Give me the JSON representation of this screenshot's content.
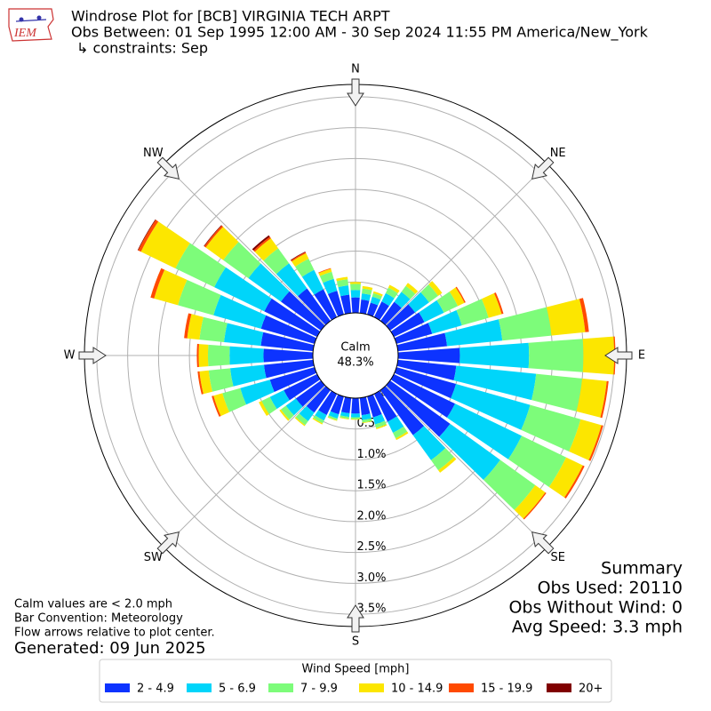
{
  "chart_data": {
    "type": "windrose",
    "title": "Windrose Plot for [BCB] VIRGINIA TECH ARPT",
    "subtitle": "Obs Between: 01 Sep 1995 12:00 AM - 30 Sep 2024 11:55 PM America/New_York",
    "constraints": "↳ constraints: Sep",
    "calm_label": "Calm",
    "calm_percent": "48.3%",
    "compass": [
      "N",
      "NE",
      "E",
      "SE",
      "S",
      "SW",
      "W",
      "NW"
    ],
    "x": [
      0,
      10,
      20,
      30,
      40,
      50,
      60,
      70,
      80,
      90,
      100,
      110,
      120,
      130,
      140,
      150,
      160,
      170,
      180,
      190,
      200,
      210,
      220,
      230,
      240,
      250,
      260,
      270,
      280,
      290,
      300,
      310,
      320,
      330,
      340,
      350
    ],
    "ylim": [
      0,
      3.7
    ],
    "yticks": [
      {
        "value": 0,
        "label": "0.0%"
      },
      {
        "value": 0.5,
        "label": "0.5%"
      },
      {
        "value": 1,
        "label": "1.0%"
      },
      {
        "value": 1.5,
        "label": "1.5%"
      },
      {
        "value": 2,
        "label": "2.0%"
      },
      {
        "value": 2.5,
        "label": "2.5%"
      },
      {
        "value": 3,
        "label": "3.0%"
      },
      {
        "value": 3.5,
        "label": "3.5%"
      }
    ],
    "grid": true,
    "legend_title": "Wind Speed [mph]",
    "series": [
      {
        "name": "2 - 4.9",
        "color": "#0d33ff",
        "values": [
          0.25,
          0.22,
          0.2,
          0.28,
          0.38,
          0.5,
          0.55,
          0.6,
          0.8,
          1.0,
          0.95,
          1.0,
          1.1,
          1.2,
          0.9,
          0.5,
          0.35,
          0.28,
          0.25,
          0.25,
          0.3,
          0.38,
          0.45,
          0.5,
          0.6,
          0.75,
          0.8,
          0.8,
          0.85,
          0.9,
          0.95,
          0.8,
          0.65,
          0.5,
          0.4,
          0.3
        ]
      },
      {
        "name": "5 - 6.9",
        "color": "#00d5fa",
        "values": [
          0.12,
          0.1,
          0.1,
          0.15,
          0.2,
          0.28,
          0.35,
          0.5,
          0.9,
          1.12,
          1.3,
          1.25,
          1.2,
          1.0,
          0.5,
          0.2,
          0.12,
          0.08,
          0.06,
          0.06,
          0.07,
          0.1,
          0.17,
          0.2,
          0.25,
          0.5,
          0.55,
          0.55,
          0.6,
          0.8,
          0.9,
          0.65,
          0.5,
          0.35,
          0.2,
          0.15
        ]
      },
      {
        "name": "7 - 9.9",
        "color": "#7dfc7a",
        "values": [
          0.1,
          0.08,
          0.06,
          0.1,
          0.12,
          0.18,
          0.25,
          0.45,
          0.8,
          0.88,
          0.75,
          0.85,
          0.8,
          0.7,
          0.2,
          0.1,
          0.06,
          0.04,
          0.03,
          0.03,
          0.03,
          0.05,
          0.08,
          0.1,
          0.15,
          0.3,
          0.35,
          0.35,
          0.4,
          0.6,
          0.7,
          0.5,
          0.3,
          0.2,
          0.12,
          0.1
        ]
      },
      {
        "name": "10 - 14.9",
        "color": "#fce600",
        "values": [
          0.03,
          0.04,
          0.03,
          0.05,
          0.06,
          0.08,
          0.12,
          0.22,
          0.55,
          0.5,
          0.4,
          0.35,
          0.3,
          0.2,
          0.05,
          0.03,
          0.02,
          0.01,
          0.01,
          0.01,
          0.01,
          0.02,
          0.02,
          0.03,
          0.05,
          0.15,
          0.15,
          0.15,
          0.2,
          0.4,
          0.62,
          0.35,
          0.2,
          0.1,
          0.05,
          0.04
        ]
      },
      {
        "name": "15 - 19.9",
        "color": "#ff4a00",
        "values": [
          0,
          0,
          0,
          0,
          0,
          0,
          0.02,
          0.03,
          0.06,
          0.02,
          0.03,
          0.03,
          0.03,
          0.02,
          0,
          0,
          0,
          0,
          0,
          0,
          0,
          0,
          0,
          0,
          0,
          0.03,
          0.03,
          0.03,
          0.05,
          0.06,
          0.05,
          0.03,
          0.03,
          0.02,
          0.01,
          0
        ]
      },
      {
        "name": "20+",
        "color": "#800000",
        "values": [
          0,
          0,
          0,
          0,
          0,
          0,
          0,
          0,
          0,
          0,
          0,
          0,
          0,
          0,
          0,
          0,
          0,
          0,
          0,
          0,
          0,
          0,
          0,
          0,
          0,
          0,
          0,
          0,
          0,
          0,
          0.01,
          0.01,
          0.03,
          0.01,
          0,
          0
        ]
      }
    ],
    "notes": [
      "Calm values are < 2.0 mph",
      "Bar Convention: Meteorology",
      "Flow arrows relative to plot center."
    ],
    "generated": "Generated: 09 Jun 2025",
    "summary": [
      "Summary",
      "Obs Used: 20110",
      "Obs Without Wind: 0",
      "Avg Speed: 3.3 mph"
    ]
  }
}
